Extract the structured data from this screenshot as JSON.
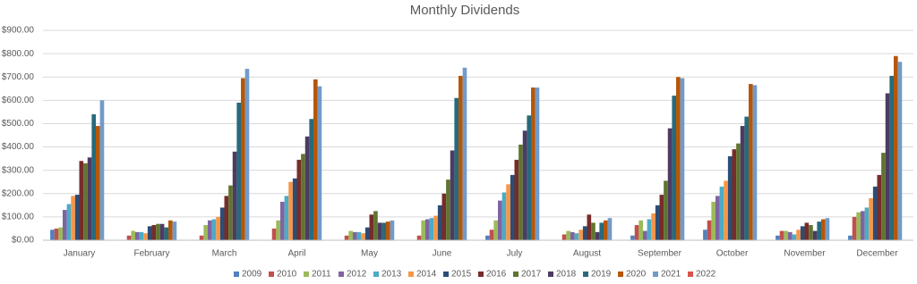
{
  "chart_data": {
    "type": "bar",
    "title": "Monthly Dividends",
    "categories": [
      "January",
      "February",
      "March",
      "April",
      "May",
      "June",
      "July",
      "August",
      "September",
      "October",
      "November",
      "December"
    ],
    "ylim": [
      0,
      900
    ],
    "yticks": [
      {
        "value": 0,
        "label": "$0.00"
      },
      {
        "value": 100,
        "label": "$100.00"
      },
      {
        "value": 200,
        "label": "$200.00"
      },
      {
        "value": 300,
        "label": "$300.00"
      },
      {
        "value": 400,
        "label": "$400.00"
      },
      {
        "value": 500,
        "label": "$500.00"
      },
      {
        "value": 600,
        "label": "$600.00"
      },
      {
        "value": 700,
        "label": "$700.00"
      },
      {
        "value": 800,
        "label": "$800.00"
      },
      {
        "value": 900,
        "label": "$900.00"
      }
    ],
    "grid": true,
    "legend": "bottom",
    "series": [
      {
        "name": "2009",
        "color": "#4f81bd",
        "values": [
          45,
          null,
          null,
          null,
          null,
          null,
          20,
          null,
          20,
          45,
          20,
          20
        ]
      },
      {
        "name": "2010",
        "color": "#c0504d",
        "values": [
          50,
          20,
          20,
          50,
          20,
          20,
          45,
          25,
          65,
          85,
          40,
          100
        ]
      },
      {
        "name": "2011",
        "color": "#9bbb59",
        "values": [
          55,
          40,
          65,
          85,
          40,
          85,
          85,
          40,
          85,
          165,
          40,
          120
        ]
      },
      {
        "name": "2012",
        "color": "#8064a2",
        "values": [
          130,
          35,
          85,
          165,
          35,
          90,
          170,
          35,
          40,
          190,
          35,
          125
        ]
      },
      {
        "name": "2013",
        "color": "#4bacc6",
        "values": [
          155,
          35,
          90,
          190,
          35,
          95,
          205,
          30,
          90,
          230,
          25,
          140
        ]
      },
      {
        "name": "2014",
        "color": "#f79646",
        "values": [
          190,
          30,
          100,
          250,
          30,
          105,
          240,
          45,
          115,
          255,
          45,
          180
        ]
      },
      {
        "name": "2015",
        "color": "#2c4d75",
        "values": [
          195,
          60,
          140,
          265,
          55,
          150,
          280,
          60,
          150,
          360,
          60,
          230
        ]
      },
      {
        "name": "2016",
        "color": "#772c2a",
        "values": [
          340,
          65,
          190,
          345,
          110,
          200,
          345,
          110,
          195,
          390,
          75,
          280
        ]
      },
      {
        "name": "2017",
        "color": "#5f7530",
        "values": [
          330,
          70,
          235,
          370,
          125,
          260,
          410,
          75,
          255,
          415,
          65,
          375
        ]
      },
      {
        "name": "2018",
        "color": "#4d3b62",
        "values": [
          355,
          70,
          380,
          445,
          75,
          385,
          470,
          35,
          480,
          490,
          40,
          630
        ]
      },
      {
        "name": "2019",
        "color": "#276a7c",
        "values": [
          540,
          55,
          590,
          520,
          75,
          610,
          535,
          75,
          620,
          530,
          80,
          705
        ]
      },
      {
        "name": "2020",
        "color": "#b65708",
        "values": [
          490,
          85,
          695,
          690,
          80,
          705,
          655,
          85,
          700,
          670,
          90,
          790
        ]
      },
      {
        "name": "2021",
        "color": "#729aca",
        "values": [
          600,
          80,
          735,
          660,
          85,
          740,
          655,
          95,
          695,
          665,
          95,
          765
        ]
      },
      {
        "name": "2022",
        "color": "#d9534f",
        "values": [
          null,
          null,
          null,
          null,
          null,
          null,
          null,
          null,
          null,
          null,
          null,
          null
        ]
      }
    ]
  }
}
